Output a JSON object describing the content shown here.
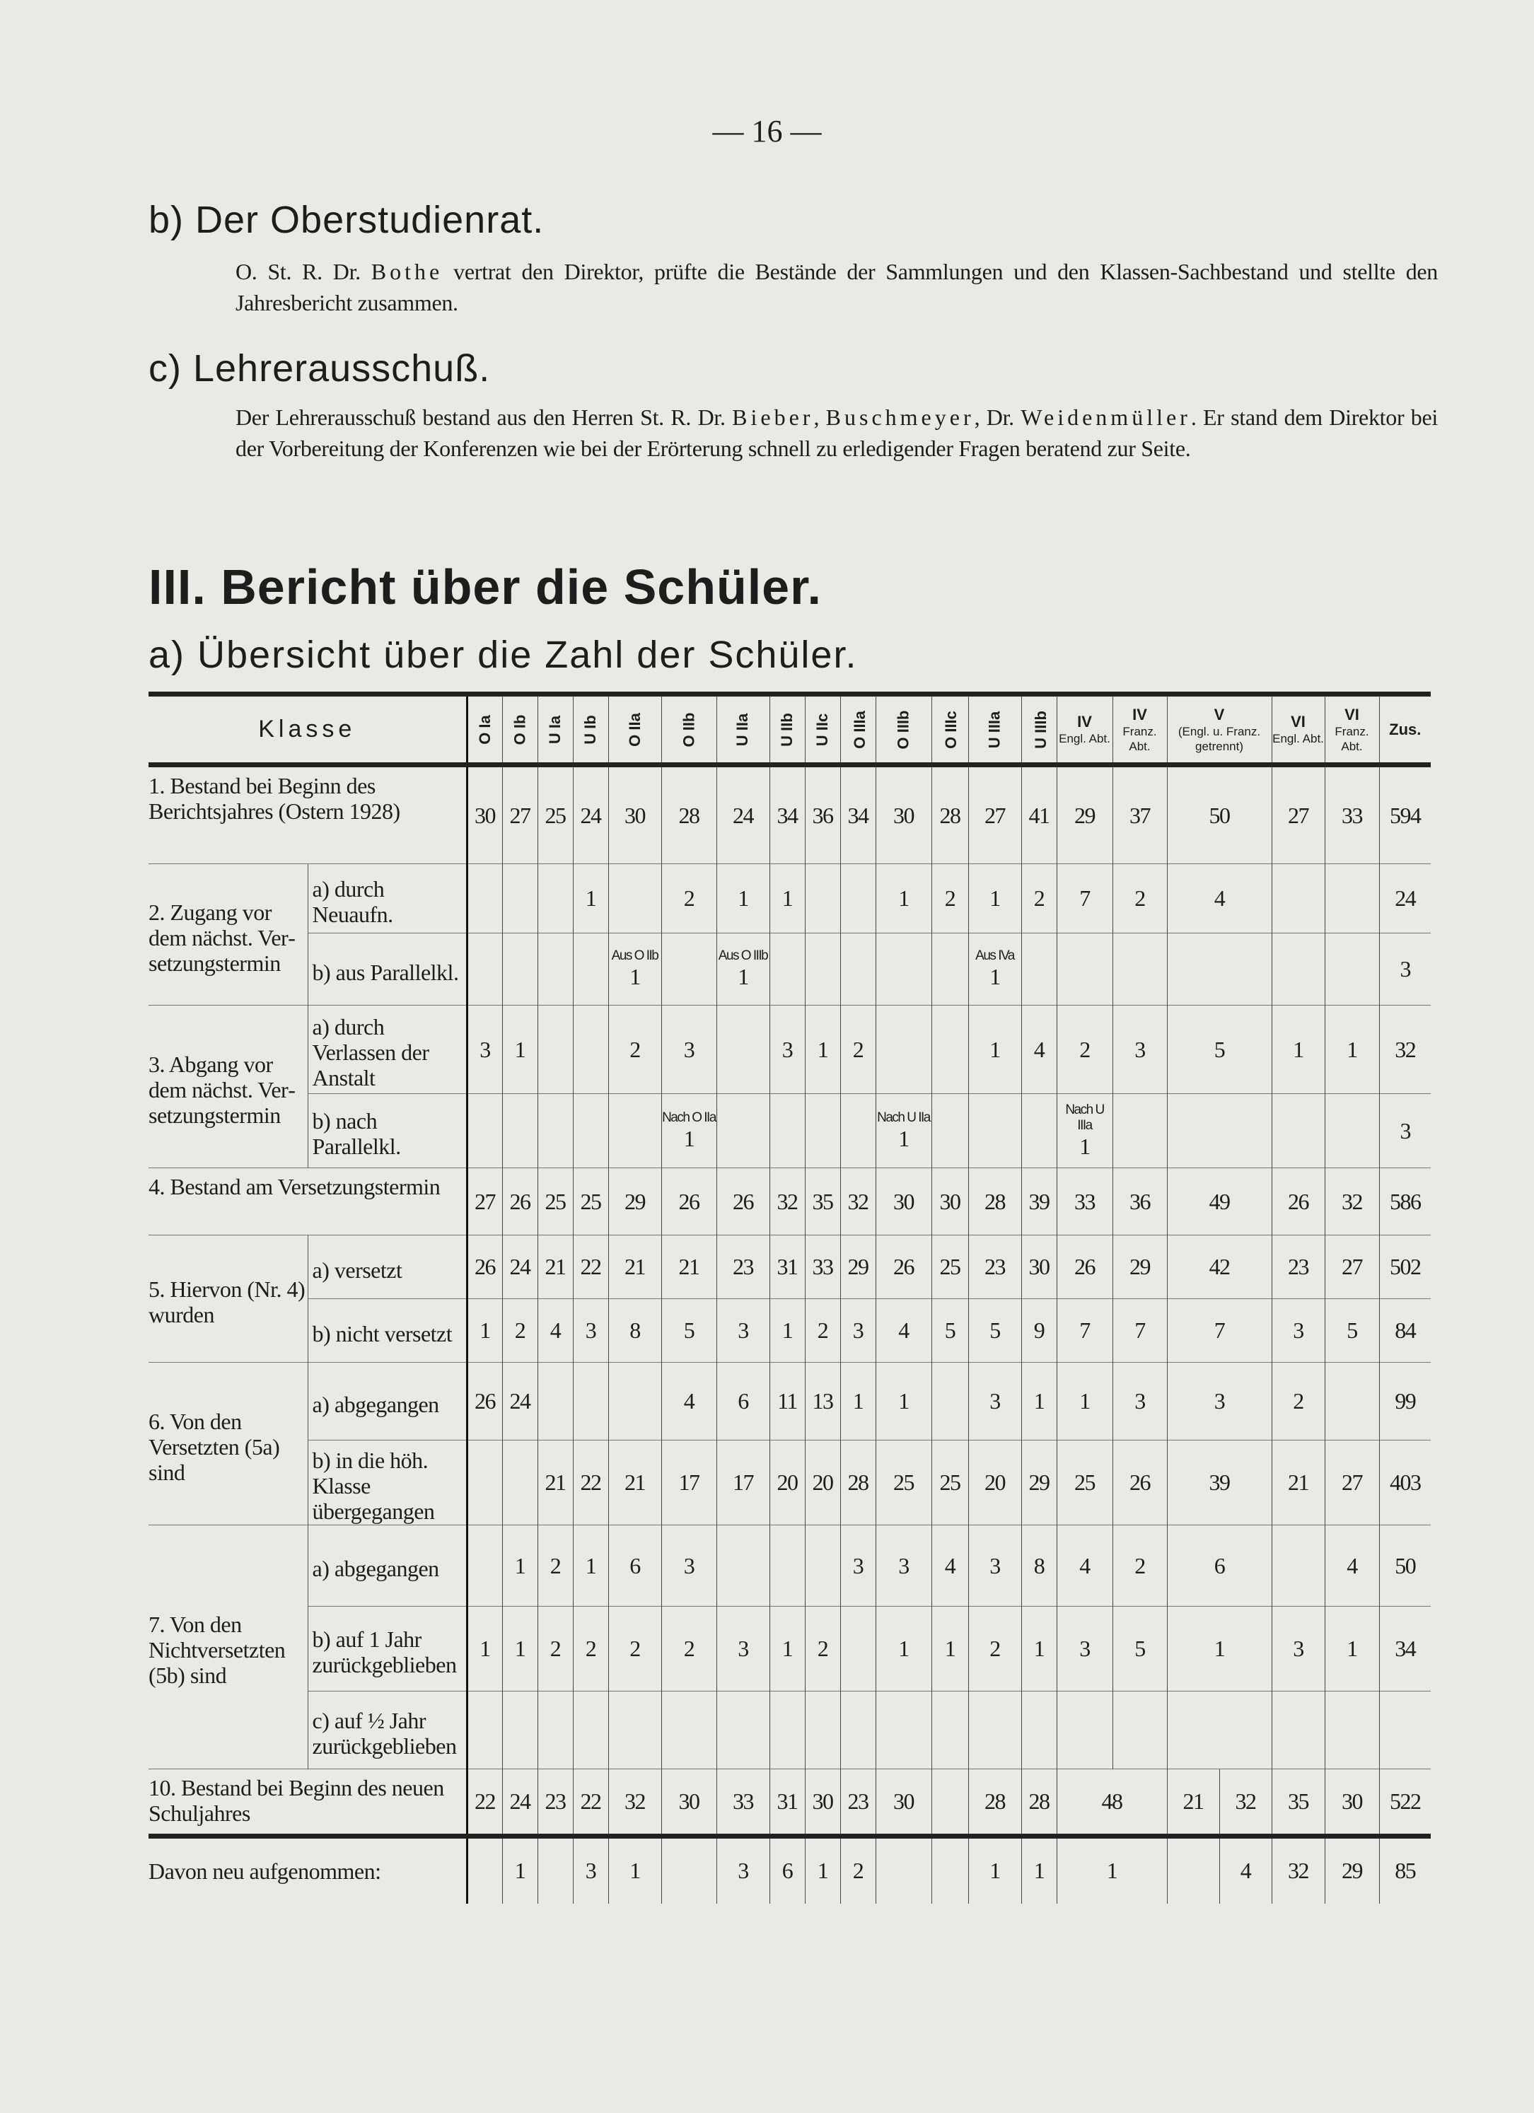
{
  "page_number": "— 16 —",
  "section_b": {
    "heading": "b) Der Oberstudienrat.",
    "text_prefix": "O. St. R. Dr. ",
    "name": "Bothe",
    "text": " vertrat den Direktor, prüfte die Bestände der Sammlungen und den Klassen-Sachbestand und stellte den Jahresbericht zusammen."
  },
  "section_c": {
    "heading": "c) Lehrerausschuß.",
    "t1": "Der Lehrerausschuß bestand aus den Herren St. R. Dr. ",
    "n1": "Bieber",
    "t2": ", ",
    "n2": "Buschmeyer",
    "t3": ", Dr. ",
    "n3": "Weidenmüller",
    "t4": ". Er stand dem Direktor bei der Vorbereitung der Konferenzen wie bei der Erörterung schnell zu erledigender Fragen beratend zur Seite."
  },
  "chapter_heading": "III. Bericht über die Schüler.",
  "subsection_heading": "a) Übersicht über die Zahl der Schüler.",
  "table": {
    "klasse_label": "Klasse",
    "columns": [
      {
        "rot": "O Ia"
      },
      {
        "rot": "O Ib"
      },
      {
        "rot": "U Ia"
      },
      {
        "rot": "U Ib"
      },
      {
        "rot": "O IIa"
      },
      {
        "rot": "O IIb"
      },
      {
        "rot": "U IIa"
      },
      {
        "rot": "U IIb"
      },
      {
        "rot": "U IIc"
      },
      {
        "rot": "O IIIa"
      },
      {
        "rot": "O IIIb"
      },
      {
        "rot": "O IIIc"
      },
      {
        "rot": "U IIIa"
      },
      {
        "rot": "U IIIb"
      },
      {
        "top": "IV",
        "sub": "Engl. Abt."
      },
      {
        "top": "IV",
        "sub": "Franz. Abt."
      },
      {
        "top": "V",
        "sub": "(Engl. u. Franz. getrennt)"
      },
      {
        "top": "VI",
        "sub": "Engl. Abt."
      },
      {
        "top": "VI",
        "sub": "Franz. Abt."
      }
    ],
    "total_label": "Zus.",
    "rows": [
      {
        "label": "1. Bestand bei Beginn des Berichtsjahres (Ostern 1928)",
        "values": [
          "30",
          "27",
          "25",
          "24",
          "30",
          "28",
          "24",
          "34",
          "36",
          "34",
          "30",
          "28",
          "27",
          "41",
          "29",
          "37",
          "50",
          "27",
          "33",
          "594"
        ]
      },
      {
        "label": "2. Zugang vor dem nächst. Ver­setzungs­termin",
        "subrows": [
          {
            "label": "a) durch Neuaufn.",
            "values": [
              "",
              "",
              "",
              "1",
              "",
              "2",
              "1",
              "1",
              "",
              "",
              "1",
              "2",
              "1",
              "2",
              "7",
              "2",
              "4",
              "",
              "",
              "24"
            ]
          },
          {
            "label": "b) aus Parallelkl.",
            "values": [
              "",
              "",
              "",
              "",
              {
                "note": "Aus O IIb",
                "value": "1"
              },
              "",
              {
                "note": "Aus O IIIb",
                "value": "1"
              },
              "",
              "",
              "",
              "",
              "",
              {
                "note": "Aus IVa",
                "value": "1"
              },
              "",
              "",
              "",
              "",
              "",
              "",
              "3"
            ]
          }
        ]
      },
      {
        "label": "3. Abgang vor dem nächst. Ver­setzungs­termin",
        "subrows": [
          {
            "label": "a) durch Verlassen der Anstalt",
            "values": [
              "3",
              "1",
              "",
              "",
              "2",
              "3",
              "",
              "3",
              "1",
              "2",
              "",
              "",
              "1",
              "4",
              "2",
              "3",
              "5",
              "1",
              "1",
              "32"
            ]
          },
          {
            "label": "b) nach Parallelkl.",
            "values": [
              "",
              "",
              "",
              "",
              "",
              {
                "note": "Nach O IIa",
                "value": "1"
              },
              "",
              "",
              "",
              "",
              {
                "note": "Nach U IIa",
                "value": "1"
              },
              "",
              "",
              "",
              {
                "note": "Nach U IIIa",
                "value": "1"
              },
              "",
              "",
              "",
              "",
              "3"
            ]
          }
        ]
      },
      {
        "label": "4. Bestand am Versetzungstermin",
        "values": [
          "27",
          "26",
          "25",
          "25",
          "29",
          "26",
          "26",
          "32",
          "35",
          "32",
          "30",
          "30",
          "28",
          "39",
          "33",
          "36",
          "49",
          "26",
          "32",
          "586"
        ]
      },
      {
        "label": "5. Hiervon (Nr. 4) wurden",
        "subrows": [
          {
            "label": "a) versetzt",
            "values": [
              "26",
              "24",
              "21",
              "22",
              "21",
              "21",
              "23",
              "31",
              "33",
              "29",
              "26",
              "25",
              "23",
              "30",
              "26",
              "29",
              "42",
              "23",
              "27",
              "502"
            ]
          },
          {
            "label": "b) nicht versetzt",
            "values": [
              "1",
              "2",
              "4",
              "3",
              "8",
              "5",
              "3",
              "1",
              "2",
              "3",
              "4",
              "5",
              "5",
              "9",
              "7",
              "7",
              "7",
              "3",
              "5",
              "84"
            ]
          }
        ]
      },
      {
        "label": "6. Von den Versetzten (5a) sind",
        "subrows": [
          {
            "label": "a) abgegangen",
            "values": [
              "26",
              "24",
              "",
              "",
              "",
              "4",
              "6",
              "11",
              "13",
              "1",
              "1",
              "",
              "3",
              "1",
              "1",
              "3",
              "3",
              "2",
              "",
              "99"
            ]
          },
          {
            "label": "b) in die höh. Klasse übergegangen",
            "values": [
              "",
              "",
              "21",
              "22",
              "21",
              "17",
              "17",
              "20",
              "20",
              "28",
              "25",
              "25",
              "20",
              "29",
              "25",
              "26",
              "39",
              "21",
              "27",
              "403"
            ]
          }
        ]
      },
      {
        "label": "7. Von den Nichtversetzten (5b) sind",
        "subrows": [
          {
            "label": "a) abgegangen",
            "values": [
              "",
              "1",
              "2",
              "1",
              "6",
              "3",
              "",
              "",
              "",
              "3",
              "3",
              "4",
              "3",
              "8",
              "4",
              "2",
              "6",
              "",
              "4",
              "50"
            ]
          },
          {
            "label": "b) auf 1 Jahr zurückgeblieben",
            "values": [
              "1",
              "1",
              "2",
              "2",
              "2",
              "2",
              "3",
              "1",
              "2",
              "",
              "1",
              "1",
              "2",
              "1",
              "3",
              "5",
              "1",
              "3",
              "1",
              "34"
            ]
          },
          {
            "label": "c) auf ½ Jahr zurückgeblieben",
            "values": [
              "",
              "",
              "",
              "",
              "",
              "",
              "",
              "",
              "",
              "",
              "",
              "",
              "",
              "",
              "",
              "",
              "",
              "",
              "",
              ""
            ]
          }
        ]
      }
    ],
    "row_new_year": {
      "label": "10. Bestand bei Beginn des neuen Schuljahres",
      "first": [
        "22",
        "24",
        "23",
        "22",
        "32",
        "30",
        "33",
        "31",
        "30",
        "23",
        "30",
        "",
        "28",
        "28"
      ],
      "iv_merged": "48",
      "v_split": [
        "21",
        "32"
      ],
      "vi": [
        "35",
        "30"
      ],
      "total": "522"
    },
    "row_newly_admitted": {
      "label": "Davon neu aufgenommen:",
      "first": [
        "",
        "1",
        "",
        "3",
        "1",
        "",
        "3",
        "6",
        "1",
        "2",
        "",
        "",
        "1",
        "1"
      ],
      "iv_merged": "1",
      "v_split": [
        "",
        "4"
      ],
      "vi": [
        "32",
        "29"
      ],
      "total": "85"
    }
  }
}
